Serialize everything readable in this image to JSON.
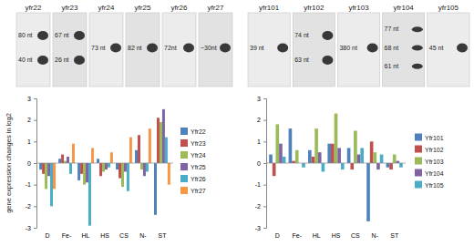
{
  "chart_data": [
    {
      "type": "bar",
      "y_label": "gene expression changes in log2",
      "categories": [
        "D",
        "Fe-",
        "HL",
        "HS",
        "CS",
        "N-",
        "ST"
      ],
      "ylim": [
        -3,
        3
      ],
      "yticks": [
        -3,
        -2,
        -1,
        0,
        1,
        2,
        3
      ],
      "grid": false,
      "legend": "right",
      "series": [
        {
          "name": "Yfr22",
          "color": "#4f81bd",
          "values": [
            -0.3,
            0.2,
            -0.8,
            0.2,
            -0.3,
            0.6,
            -2.4
          ]
        },
        {
          "name": "Yfr23",
          "color": "#c0504d",
          "values": [
            -0.5,
            0.4,
            -0.5,
            -0.6,
            -0.7,
            1.3,
            2.1
          ]
        },
        {
          "name": "Yfr24",
          "color": "#9bbb59",
          "values": [
            -1.2,
            0.1,
            -1.0,
            -0.4,
            -1.1,
            -0.3,
            1.9
          ]
        },
        {
          "name": "Yfr25",
          "color": "#8064a2",
          "values": [
            -0.6,
            0.3,
            -0.9,
            -0.3,
            -0.4,
            -0.6,
            2.5
          ]
        },
        {
          "name": "Yfr26",
          "color": "#4bacc6",
          "values": [
            -2.0,
            -0.5,
            -2.9,
            -0.2,
            -1.3,
            -0.4,
            1.2
          ]
        },
        {
          "name": "Yfr27",
          "color": "#f79646",
          "values": [
            -1.2,
            0.9,
            0.7,
            0.5,
            1.2,
            1.6,
            -1.0
          ]
        }
      ]
    },
    {
      "type": "bar",
      "categories": [
        "D",
        "Fe-",
        "HL",
        "HS",
        "CS",
        "N-",
        "ST"
      ],
      "ylim": [
        -3,
        3
      ],
      "yticks": [
        -3,
        -2,
        -1,
        0,
        1,
        2,
        3
      ],
      "grid": false,
      "legend": "right",
      "series": [
        {
          "name": "Yfr101",
          "color": "#4f81bd",
          "values": [
            0.4,
            1.6,
            0.6,
            0.9,
            0.7,
            -2.7,
            -0.2
          ]
        },
        {
          "name": "Yfr102",
          "color": "#c0504d",
          "values": [
            -0.6,
            0.1,
            0.3,
            0.9,
            -0.3,
            1.0,
            -0.3
          ]
        },
        {
          "name": "Yfr103",
          "color": "#9bbb59",
          "values": [
            1.8,
            0.6,
            1.6,
            2.3,
            1.5,
            0.5,
            0.4
          ]
        },
        {
          "name": "Yfr104",
          "color": "#8064a2",
          "values": [
            0.9,
            0.0,
            0.5,
            0.7,
            0.4,
            -0.3,
            0.1
          ]
        },
        {
          "name": "Yfr105",
          "color": "#4bacc6",
          "values": [
            0.3,
            -0.2,
            -0.4,
            -0.3,
            0.7,
            0.4,
            -0.2
          ]
        }
      ]
    }
  ],
  "blots": [
    [
      {
        "label": "yfr22",
        "bands": [
          "80 nt",
          "40 nt"
        ]
      },
      {
        "label": "yfr23",
        "bands": [
          "67 nt",
          "26 nt"
        ]
      },
      {
        "label": "yfr24",
        "bands": [
          "73 nt"
        ]
      },
      {
        "label": "yfr25",
        "bands": [
          "82 nt"
        ]
      },
      {
        "label": "yfr26",
        "bands": [
          "72nt"
        ]
      },
      {
        "label": "yfr27",
        "bands": [
          "~30nt"
        ]
      }
    ],
    [
      {
        "label": "yfr101",
        "bands": [
          "39 nt"
        ]
      },
      {
        "label": "yfr102",
        "bands": [
          "74 nt",
          "63 nt"
        ]
      },
      {
        "label": "yfr103",
        "bands": [
          "380 nt"
        ]
      },
      {
        "label": "yfr104",
        "bands": [
          "77 nt",
          "68 nt",
          "61 nt"
        ]
      },
      {
        "label": "yfr105",
        "bands": [
          "45 nt"
        ]
      }
    ]
  ]
}
